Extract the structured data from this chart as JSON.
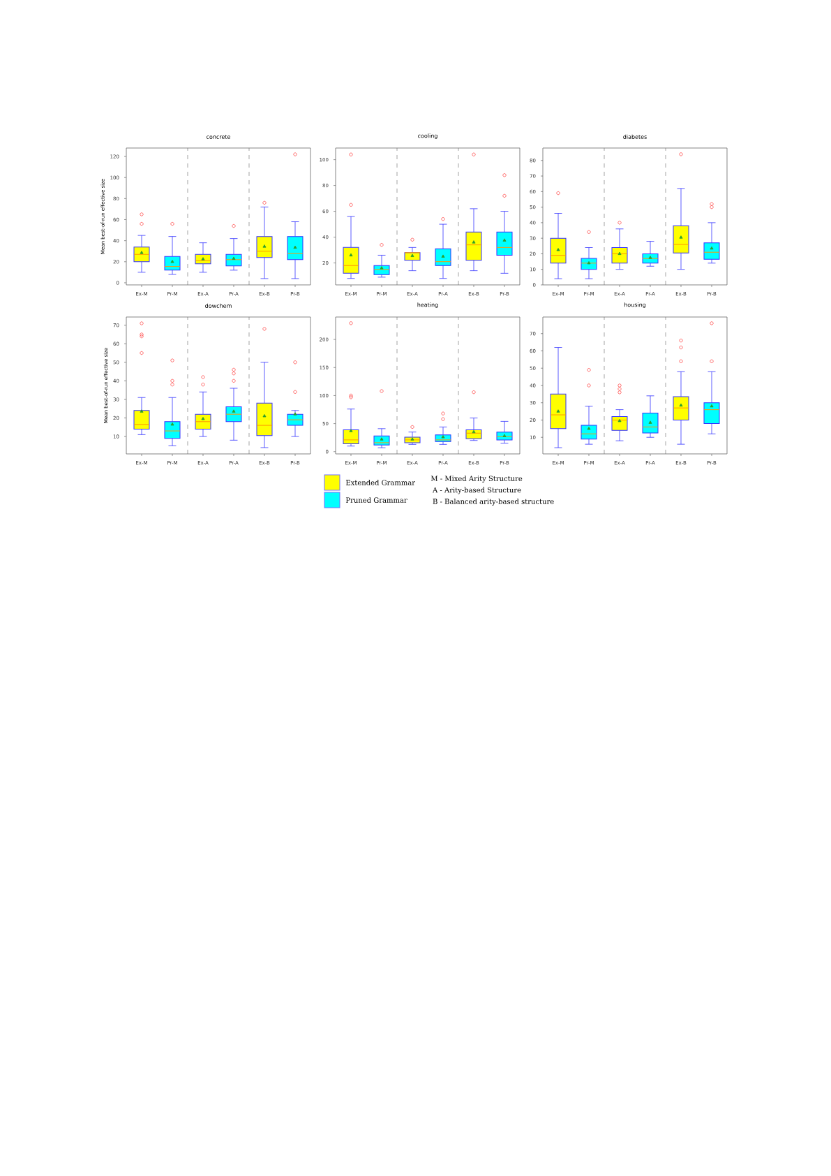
{
  "chart_data": [
    {
      "type": "box",
      "title": "concrete",
      "ylabel": "Mean best-of-run effective size",
      "categories": [
        "Ex-M",
        "Pr-M",
        "Ex-A",
        "Pr-A",
        "Ex-B",
        "Pr-B"
      ],
      "ylim": [
        -2,
        128
      ],
      "yticks": [
        0,
        20,
        40,
        60,
        80,
        100,
        120
      ],
      "series": [
        {
          "color": "#ffff00",
          "boxes": [
            {
              "low": 10,
              "q1": 20,
              "median": 27,
              "q3": 34,
              "high": 45,
              "mean": 28.5,
              "outliers": [
                56,
                65
              ]
            },
            null,
            {
              "low": 10,
              "q1": 18,
              "median": 21,
              "q3": 27,
              "high": 38,
              "mean": 22.5
            },
            null,
            {
              "low": 4,
              "q1": 24,
              "median": 30,
              "q3": 44,
              "high": 72,
              "mean": 34.5,
              "outliers": [
                76
              ]
            },
            null
          ]
        },
        {
          "color": "#00ffff",
          "boxes": [
            null,
            {
              "low": 8,
              "q1": 12,
              "median": 15.5,
              "q3": 25,
              "high": 44,
              "mean": 20,
              "outliers": [
                56
              ]
            },
            null,
            {
              "low": 12,
              "q1": 16,
              "median": 22,
              "q3": 27,
              "high": 42,
              "mean": 23,
              "outliers": [
                54
              ]
            },
            null,
            {
              "low": 4,
              "q1": 22,
              "median": 28,
              "q3": 44,
              "high": 58,
              "mean": 33.5,
              "outliers": [
                122
              ]
            }
          ]
        }
      ]
    },
    {
      "type": "box",
      "title": "cooling",
      "categories": [
        "Ex-M",
        "Pr-M",
        "Ex-A",
        "Pr-A",
        "Ex-B",
        "Pr-B"
      ],
      "ylim": [
        3,
        109
      ],
      "yticks": [
        20,
        40,
        60,
        80,
        100
      ],
      "series": [
        {
          "color": "#ffff00",
          "boxes": [
            {
              "low": 8,
              "q1": 12,
              "median": 18,
              "q3": 32,
              "high": 56,
              "mean": 26,
              "outliers": [
                65,
                104
              ]
            },
            null,
            {
              "low": 14,
              "q1": 22,
              "median": 28,
              "q3": 28,
              "high": 32,
              "mean": 25.5,
              "outliers": [
                38
              ]
            },
            null,
            {
              "low": 14,
              "q1": 22,
              "median": 34,
              "q3": 44,
              "high": 62,
              "mean": 36,
              "outliers": [
                104
              ]
            },
            null
          ]
        },
        {
          "color": "#00ffff",
          "boxes": [
            null,
            {
              "low": 9,
              "q1": 11,
              "median": 15,
              "q3": 18,
              "high": 26,
              "mean": 16,
              "outliers": [
                34
              ]
            },
            null,
            {
              "low": 8,
              "q1": 18,
              "median": 21,
              "q3": 31,
              "high": 50,
              "mean": 25,
              "outliers": [
                54
              ]
            },
            null,
            {
              "low": 12,
              "q1": 26,
              "median": 32,
              "q3": 44,
              "high": 60,
              "mean": 37.5,
              "outliers": [
                72,
                88
              ]
            }
          ]
        }
      ]
    },
    {
      "type": "box",
      "title": "diabetes",
      "categories": [
        "Ex-M",
        "Pr-M",
        "Ex-A",
        "Pr-A",
        "Ex-B",
        "Pr-B"
      ],
      "ylim": [
        0,
        88
      ],
      "yticks": [
        0,
        10,
        20,
        30,
        40,
        50,
        60,
        70,
        80
      ],
      "series": [
        {
          "color": "#ffff00",
          "boxes": [
            {
              "low": 4,
              "q1": 14,
              "median": 19,
              "q3": 30,
              "high": 46,
              "mean": 22.5,
              "outliers": [
                59
              ]
            },
            null,
            {
              "low": 10,
              "q1": 14,
              "median": 20,
              "q3": 24,
              "high": 36,
              "mean": 20,
              "outliers": [
                40
              ]
            },
            null,
            {
              "low": 10,
              "q1": 20.5,
              "median": 26,
              "q3": 38,
              "high": 62,
              "mean": 30.5,
              "outliers": [
                84
              ]
            },
            null
          ]
        },
        {
          "color": "#00ffff",
          "boxes": [
            null,
            {
              "low": 4,
              "q1": 10,
              "median": 14,
              "q3": 17,
              "high": 24,
              "mean": 14,
              "outliers": [
                34
              ]
            },
            null,
            {
              "low": 12,
              "q1": 14,
              "median": 17,
              "q3": 20,
              "high": 28,
              "mean": 17.5
            },
            null,
            {
              "low": 14,
              "q1": 16.5,
              "median": 21,
              "q3": 27,
              "high": 40,
              "mean": 23.5,
              "outliers": [
                50,
                52
              ]
            }
          ]
        }
      ]
    },
    {
      "type": "box",
      "title": "dowchem",
      "ylabel": "Mean best-of-run effective size",
      "categories": [
        "Ex-M",
        "Pr-M",
        "Ex-A",
        "Pr-A",
        "Ex-B",
        "Pr-B"
      ],
      "ylim": [
        0.6,
        74.4
      ],
      "yticks": [
        10,
        20,
        30,
        40,
        50,
        60,
        70
      ],
      "series": [
        {
          "color": "#ffff00",
          "boxes": [
            {
              "low": 11,
              "q1": 14,
              "median": 16.5,
              "q3": 24,
              "high": 31,
              "mean": 23.5,
              "outliers": [
                55,
                64,
                65,
                71
              ]
            },
            null,
            {
              "low": 10,
              "q1": 14,
              "median": 18,
              "q3": 22,
              "high": 34,
              "mean": 19.5,
              "outliers": [
                38,
                42
              ]
            },
            null,
            {
              "low": 4,
              "q1": 10.5,
              "median": 16,
              "q3": 28,
              "high": 50,
              "mean": 21,
              "outliers": [
                68
              ]
            },
            null
          ]
        },
        {
          "color": "#00ffff",
          "boxes": [
            null,
            {
              "low": 5,
              "q1": 9,
              "median": 13,
              "q3": 18,
              "high": 31,
              "mean": 16.5,
              "outliers": [
                38,
                40,
                51
              ]
            },
            null,
            {
              "low": 8,
              "q1": 18,
              "median": 22,
              "q3": 26,
              "high": 36,
              "mean": 23.5,
              "outliers": [
                40,
                44,
                46
              ]
            },
            null,
            {
              "low": 10,
              "q1": 16,
              "median": 19,
              "q3": 22,
              "high": 24,
              "mean": 22,
              "outliers": [
                34,
                50
              ]
            }
          ]
        }
      ]
    },
    {
      "type": "box",
      "title": "heating",
      "categories": [
        "Ex-M",
        "Pr-M",
        "Ex-A",
        "Pr-A",
        "Ex-B",
        "Pr-B"
      ],
      "ylim": [
        -4,
        240
      ],
      "yticks": [
        0,
        50,
        100,
        150,
        200
      ],
      "legend": "bottom",
      "annotations": [
        "M - Mixed Arity Structure",
        "A - Arity-based Structure",
        "B - Balanced arity-based structure"
      ],
      "series": [
        {
          "name": "Extended Grammar",
          "color": "#ffff00",
          "boxes": [
            {
              "low": 10,
              "q1": 14,
              "median": 21,
              "q3": 39,
              "high": 76,
              "mean": 37,
              "outliers": [
                97,
                100,
                229
              ]
            },
            null,
            {
              "low": 13,
              "q1": 16,
              "median": 21,
              "q3": 26,
              "high": 35,
              "mean": 22,
              "outliers": [
                44
              ]
            },
            null,
            {
              "low": 20,
              "q1": 23,
              "median": 33,
              "q3": 39,
              "high": 60,
              "mean": 35,
              "outliers": [
                106
              ]
            },
            null
          ]
        },
        {
          "name": "Pruned Grammar",
          "color": "#00ffff",
          "boxes": [
            null,
            {
              "low": 7,
              "q1": 12,
              "median": 16,
              "q3": 28,
              "high": 41,
              "mean": 22,
              "outliers": [
                108
              ]
            },
            null,
            {
              "low": 13,
              "q1": 18,
              "median": 21,
              "q3": 30,
              "high": 44,
              "mean": 26,
              "outliers": [
                58,
                68
              ]
            },
            null,
            {
              "low": 15,
              "q1": 21,
              "median": 27,
              "q3": 35,
              "high": 54,
              "mean": 28
            }
          ]
        }
      ]
    },
    {
      "type": "box",
      "title": "housing",
      "categories": [
        "Ex-M",
        "Pr-M",
        "Ex-A",
        "Pr-A",
        "Ex-B",
        "Pr-B"
      ],
      "ylim": [
        0.4,
        79.6
      ],
      "yticks": [
        10,
        20,
        30,
        40,
        50,
        60,
        70
      ],
      "series": [
        {
          "color": "#ffff00",
          "boxes": [
            {
              "low": 4,
              "q1": 15,
              "median": 23,
              "q3": 35,
              "high": 62,
              "mean": 25
            },
            null,
            {
              "low": 8,
              "q1": 14,
              "median": 20,
              "q3": 22,
              "high": 26,
              "mean": 19.5,
              "outliers": [
                36,
                38,
                40
              ]
            },
            null,
            {
              "low": 6,
              "q1": 20,
              "median": 27,
              "q3": 33.5,
              "high": 48,
              "mean": 28.5,
              "outliers": [
                54,
                62,
                66
              ]
            },
            null
          ]
        },
        {
          "color": "#00ffff",
          "boxes": [
            null,
            {
              "low": 6,
              "q1": 9,
              "median": 12,
              "q3": 17,
              "high": 28,
              "mean": 15,
              "outliers": [
                40,
                49
              ]
            },
            null,
            {
              "low": 10,
              "q1": 12.5,
              "median": 16,
              "q3": 24,
              "high": 34,
              "mean": 18.5
            },
            null,
            {
              "low": 12,
              "q1": 18,
              "median": 26,
              "q3": 30,
              "high": 48,
              "mean": 28,
              "outliers": [
                54,
                76
              ]
            }
          ]
        }
      ]
    }
  ]
}
